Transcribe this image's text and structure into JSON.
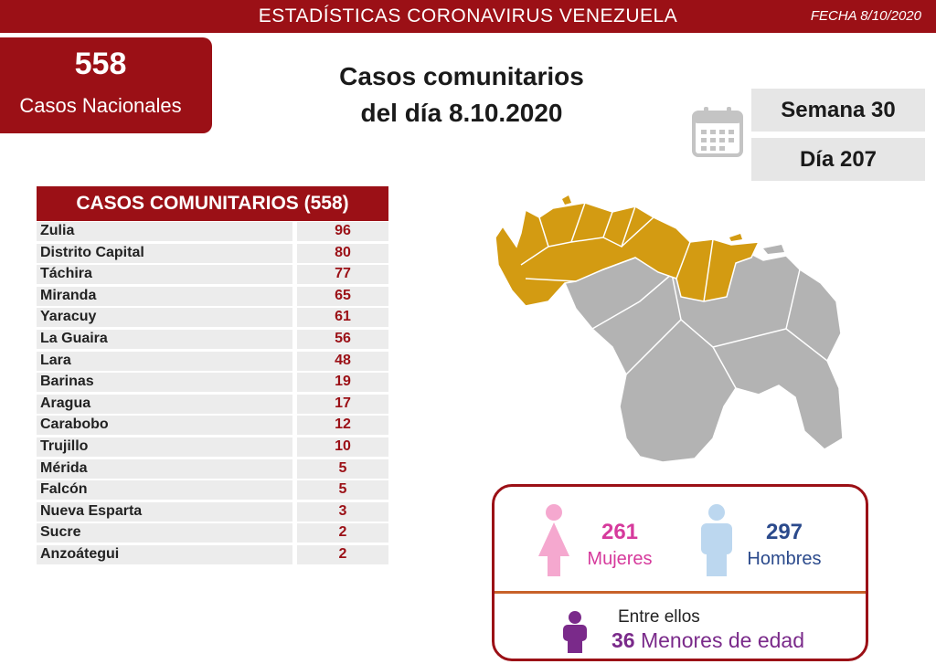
{
  "header": {
    "title": "ESTADÍSTICAS CORONAVIRUS VENEZUELA",
    "date": "FECHA 8/10/2020"
  },
  "national": {
    "count": "558",
    "label": "Casos Nacionales"
  },
  "heading": {
    "line1": "Casos comunitarios",
    "line2": "del día 8.10.2020"
  },
  "calendar": {
    "icon": "calendar-icon",
    "week": "Semana 30",
    "day": "Día 207"
  },
  "table": {
    "title": "CASOS COMUNITARIOS (558)",
    "rows": [
      {
        "state": "Zulia",
        "cases": "96"
      },
      {
        "state": "Distrito Capital",
        "cases": "80"
      },
      {
        "state": "Táchira",
        "cases": "77"
      },
      {
        "state": "Miranda",
        "cases": "65"
      },
      {
        "state": "Yaracuy",
        "cases": "61"
      },
      {
        "state": "La Guaira",
        "cases": "56"
      },
      {
        "state": "Lara",
        "cases": "48"
      },
      {
        "state": "Barinas",
        "cases": "19"
      },
      {
        "state": "Aragua",
        "cases": "17"
      },
      {
        "state": "Carabobo",
        "cases": "12"
      },
      {
        "state": "Trujillo",
        "cases": "10"
      },
      {
        "state": "Mérida",
        "cases": "5"
      },
      {
        "state": "Falcón",
        "cases": "5"
      },
      {
        "state": "Nueva Esparta",
        "cases": "3"
      },
      {
        "state": "Sucre",
        "cases": "2"
      },
      {
        "state": "Anzoátegui",
        "cases": "2"
      }
    ]
  },
  "gender": {
    "women": {
      "count": "261",
      "label": "Mujeres",
      "color": "#d63a9c",
      "icon": "woman-icon"
    },
    "men": {
      "count": "297",
      "label": "Hombres",
      "color": "#2b4a8c",
      "icon": "man-icon"
    },
    "minors": {
      "intro": "Entre ellos",
      "count": "36",
      "label": "Menores de edad",
      "color": "#7a2a8a",
      "icon": "child-icon"
    }
  },
  "colors": {
    "brand": "#9b1016",
    "affected": "#d39b12",
    "unaffected": "#b3b3b3"
  }
}
